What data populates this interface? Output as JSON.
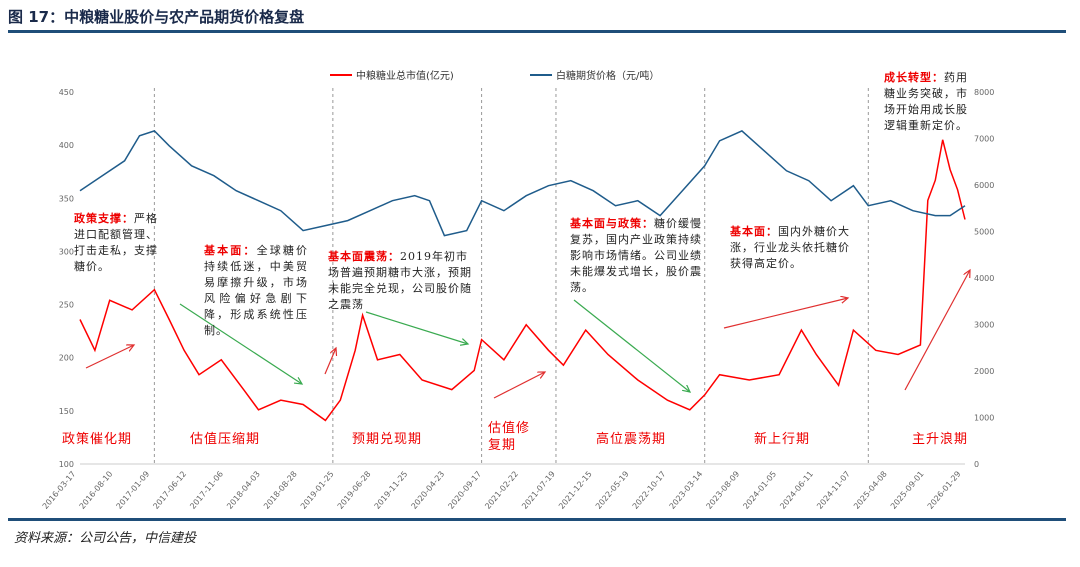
{
  "title": "图 17：中粮糖业股价与农产品期货价格复盘",
  "source": "资料来源：公司公告，中信建投",
  "annotations": [
    {
      "head": "政策支撑：",
      "body": "严格进口配额管理、打击走私，支撑糖价。"
    },
    {
      "head": "基本面：",
      "body": "全球糖价持续低迷，中美贸易摩擦升级，市场风险偏好急剧下降，形成系统性压制。"
    },
    {
      "head": "基本面震荡：",
      "body": "2019年初市场普遍预期糖市大涨，预期未能完全兑现，公司股价随之震荡"
    },
    {
      "head": "基本面与政策：",
      "body": "糖价缓慢复苏，国内产业政策持续影响市场情绪。公司业绩未能爆发式增长，股价震荡。"
    },
    {
      "head": "基本面：",
      "body": "国内外糖价大涨，行业龙头依托糖价获得高定价。"
    },
    {
      "head": "成长转型：",
      "body": "药用糖业务突破，市场开始用成长股逻辑重新定价。"
    }
  ],
  "periods": [
    "政策催化期",
    "估值压缩期",
    "预期兑现期",
    "估值修复期",
    "高位震荡期",
    "新上行期",
    "主升浪期"
  ],
  "colors": {
    "stock": "#ff0000",
    "sugar": "#1f5c8b",
    "up_arrow": "#e03030",
    "down_arrow": "#3aaa50"
  },
  "chart_data": {
    "type": "line",
    "title": "",
    "legend": [
      "中粮糖业总市值(亿元)",
      "白糖期货价格（元/吨）"
    ],
    "legend_position": "top",
    "x_ticks": [
      "2016-03-17",
      "2016-08-10",
      "2017-01-09",
      "2017-06-12",
      "2017-11-06",
      "2018-04-03",
      "2018-08-28",
      "2019-01-25",
      "2019-06-28",
      "2019-11-25",
      "2020-04-23",
      "2020-09-17",
      "2021-02-22",
      "2021-07-19",
      "2021-12-15",
      "2022-05-19",
      "2022-10-17",
      "2023-03-14",
      "2023-08-09",
      "2024-01-05",
      "2024-06-11",
      "2024-11-07",
      "2025-04-08",
      "2025-09-01",
      "2026-01-29"
    ],
    "y_left": {
      "range": [
        100,
        450
      ],
      "ticks": [
        100,
        150,
        200,
        250,
        300,
        350,
        400,
        450
      ]
    },
    "y_right": {
      "range": [
        0,
        8000
      ],
      "ticks": [
        0,
        1000,
        2000,
        3000,
        4000,
        5000,
        6000,
        7000,
        8000
      ]
    },
    "x_range": [
      "2016-03",
      "2026-02"
    ],
    "series": [
      {
        "name": "中粮糖业总市值(亿元)",
        "axis": "left",
        "points": [
          [
            "2016-03",
            236
          ],
          [
            "2016-05",
            207
          ],
          [
            "2016-07",
            254
          ],
          [
            "2016-10",
            245
          ],
          [
            "2017-01",
            264
          ],
          [
            "2017-03",
            236
          ],
          [
            "2017-05",
            207
          ],
          [
            "2017-07",
            184
          ],
          [
            "2017-10",
            198
          ],
          [
            "2018-01",
            170
          ],
          [
            "2018-03",
            151
          ],
          [
            "2018-06",
            160
          ],
          [
            "2018-09",
            156
          ],
          [
            "2018-12",
            141
          ],
          [
            "2019-02",
            160
          ],
          [
            "2019-04",
            207
          ],
          [
            "2019-05",
            240
          ],
          [
            "2019-07",
            198
          ],
          [
            "2019-10",
            203
          ],
          [
            "2020-01",
            179
          ],
          [
            "2020-05",
            170
          ],
          [
            "2020-08",
            188
          ],
          [
            "2020-09",
            217
          ],
          [
            "2020-12",
            198
          ],
          [
            "2021-03",
            231
          ],
          [
            "2021-06",
            207
          ],
          [
            "2021-08",
            193
          ],
          [
            "2021-11",
            226
          ],
          [
            "2022-02",
            203
          ],
          [
            "2022-06",
            179
          ],
          [
            "2022-10",
            160
          ],
          [
            "2023-01",
            151
          ],
          [
            "2023-03",
            165
          ],
          [
            "2023-05",
            184
          ],
          [
            "2023-09",
            179
          ],
          [
            "2024-01",
            184
          ],
          [
            "2024-04",
            226
          ],
          [
            "2024-06",
            203
          ],
          [
            "2024-09",
            174
          ],
          [
            "2024-11",
            226
          ],
          [
            "2025-02",
            207
          ],
          [
            "2025-05",
            203
          ],
          [
            "2025-08",
            212
          ],
          [
            "2025-09",
            348
          ],
          [
            "2025-10",
            367
          ],
          [
            "2025-11",
            405
          ],
          [
            "2025-12",
            377
          ],
          [
            "2026-01",
            358
          ],
          [
            "2026-02",
            330
          ]
        ]
      },
      {
        "name": "白糖期货价格（元/吨）",
        "axis": "right",
        "points": [
          [
            "2016-03",
            5877
          ],
          [
            "2016-06",
            6200
          ],
          [
            "2016-09",
            6520
          ],
          [
            "2016-11",
            7057
          ],
          [
            "2017-01",
            7164
          ],
          [
            "2017-03",
            6843
          ],
          [
            "2017-06",
            6413
          ],
          [
            "2017-09",
            6200
          ],
          [
            "2017-12",
            5877
          ],
          [
            "2018-03",
            5663
          ],
          [
            "2018-06",
            5448
          ],
          [
            "2018-09",
            5019
          ],
          [
            "2018-12",
            5126
          ],
          [
            "2019-03",
            5234
          ],
          [
            "2019-06",
            5448
          ],
          [
            "2019-09",
            5663
          ],
          [
            "2019-12",
            5770
          ],
          [
            "2020-02",
            5663
          ],
          [
            "2020-04",
            4912
          ],
          [
            "2020-07",
            5019
          ],
          [
            "2020-09",
            5663
          ],
          [
            "2020-12",
            5448
          ],
          [
            "2021-03",
            5770
          ],
          [
            "2021-06",
            5985
          ],
          [
            "2021-09",
            6092
          ],
          [
            "2021-12",
            5877
          ],
          [
            "2022-03",
            5555
          ],
          [
            "2022-06",
            5663
          ],
          [
            "2022-09",
            5341
          ],
          [
            "2022-12",
            5877
          ],
          [
            "2023-03",
            6413
          ],
          [
            "2023-05",
            6950
          ],
          [
            "2023-08",
            7164
          ],
          [
            "2023-11",
            6735
          ],
          [
            "2024-02",
            6306
          ],
          [
            "2024-05",
            6092
          ],
          [
            "2024-08",
            5663
          ],
          [
            "2024-11",
            5985
          ],
          [
            "2025-01",
            5555
          ],
          [
            "2025-04",
            5663
          ],
          [
            "2025-07",
            5448
          ],
          [
            "2025-10",
            5341
          ],
          [
            "2025-12",
            5341
          ],
          [
            "2026-02",
            5555
          ]
        ]
      }
    ],
    "dividers": [
      "2017-01",
      "2019-01",
      "2020-09",
      "2021-07",
      "2023-03",
      "2025-01"
    ]
  }
}
